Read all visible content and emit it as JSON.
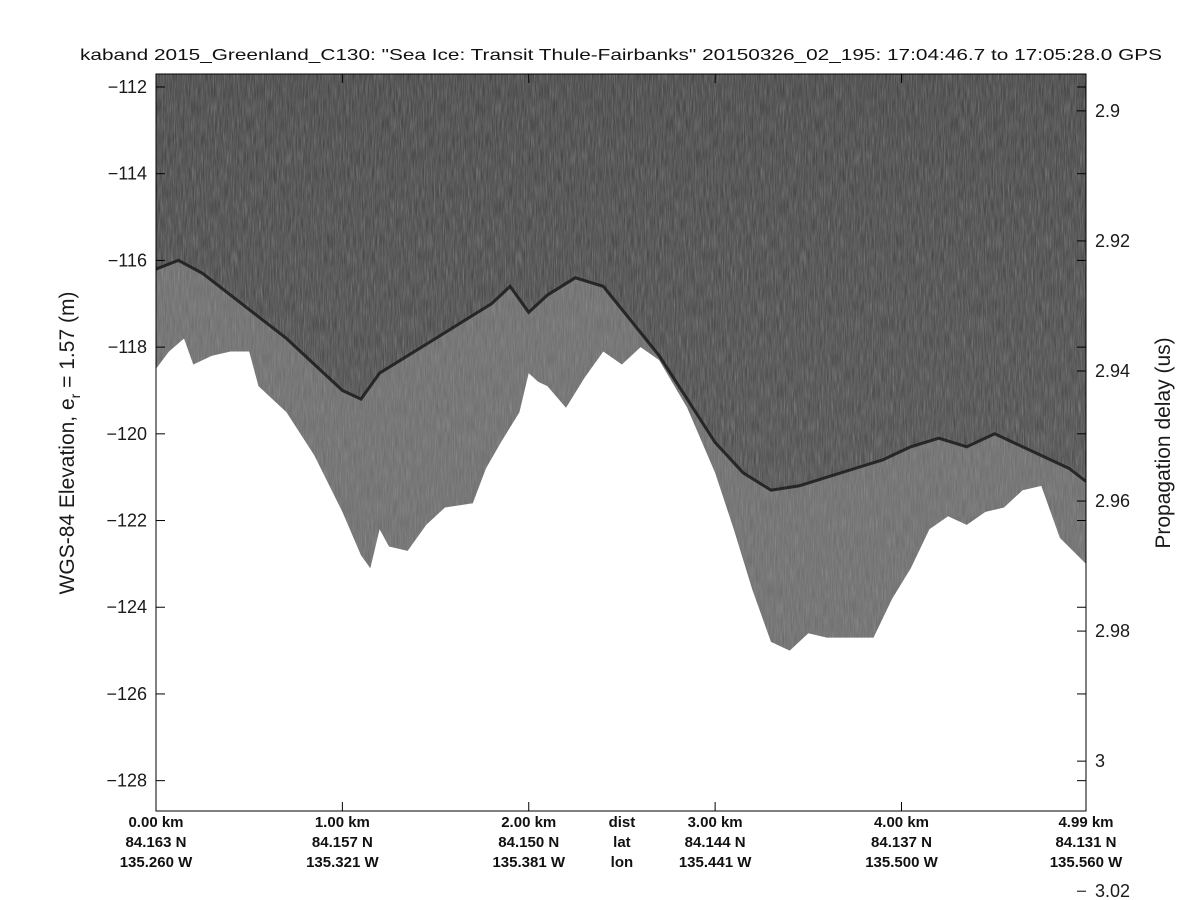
{
  "chart_data": {
    "type": "radargram",
    "title": "kaband 2015_Greenland_C130: \"Sea Ice: Transit Thule-Fairbanks\"  20150326_02_195: 17:04:46.7 to 17:05:28.0 GPS",
    "ylabel": "WGS-84 Elevation, e",
    "ylabel_sub": "r",
    "ylabel_tail": " = 1.57 (m)",
    "y2label": "Propagation delay (us)",
    "ylim": [
      -128.7,
      -111.7
    ],
    "xlim": [
      0,
      4.99
    ],
    "yticks": [
      -112,
      -114,
      -116,
      -118,
      -120,
      -122,
      -124,
      -126,
      -128
    ],
    "ytick_labels": [
      "−112",
      "−114",
      "−116",
      "−118",
      "−120",
      "−122",
      "−124",
      "−126",
      "−128"
    ],
    "y2ticks": [
      {
        "label": "2.9",
        "elev": -112.55
      },
      {
        "label": "2.92",
        "elev": -115.55
      },
      {
        "label": "2.94",
        "elev": -118.55
      },
      {
        "label": "2.96",
        "elev": -121.55
      },
      {
        "label": "2.98",
        "elev": -124.55
      },
      {
        "label": "3",
        "elev": -127.55
      },
      {
        "label": "3.02",
        "elev": -130.55
      }
    ],
    "bottom_ticks": [
      {
        "x": 0.0,
        "dist": "0.00 km",
        "lat": "84.163 N",
        "lon": "135.260 W"
      },
      {
        "x": 1.0,
        "dist": "1.00 km",
        "lat": "84.157 N",
        "lon": "135.321 W"
      },
      {
        "x": 2.0,
        "dist": "2.00 km",
        "lat": "84.150 N",
        "lon": "135.381 W"
      },
      {
        "x": 3.0,
        "dist": "3.00 km",
        "lat": "84.144 N",
        "lon": "135.441 W"
      },
      {
        "x": 4.0,
        "dist": "4.00 km",
        "lat": "84.137 N",
        "lon": "135.500 W"
      },
      {
        "x": 4.99,
        "dist": "4.99 km",
        "lat": "84.131 N",
        "lon": "135.560 W"
      }
    ],
    "bottom_row_labels": {
      "x": 2.5,
      "dist": "dist",
      "lat": "lat",
      "lon": "lon"
    },
    "surface": {
      "x": [
        0.0,
        0.12,
        0.25,
        0.4,
        0.55,
        0.7,
        0.85,
        1.0,
        1.1,
        1.2,
        1.35,
        1.5,
        1.65,
        1.8,
        1.9,
        2.0,
        2.1,
        2.25,
        2.4,
        2.55,
        2.7,
        2.85,
        3.0,
        3.15,
        3.3,
        3.45,
        3.6,
        3.75,
        3.9,
        4.05,
        4.2,
        4.35,
        4.5,
        4.6,
        4.75,
        4.9,
        4.99
      ],
      "y": [
        -116.2,
        -116.0,
        -116.3,
        -116.8,
        -117.3,
        -117.8,
        -118.4,
        -119.0,
        -119.2,
        -118.6,
        -118.2,
        -117.8,
        -117.4,
        -117.0,
        -116.6,
        -117.2,
        -116.8,
        -116.4,
        -116.6,
        -117.4,
        -118.2,
        -119.2,
        -120.2,
        -120.9,
        -121.3,
        -121.2,
        -121.0,
        -120.8,
        -120.6,
        -120.3,
        -120.1,
        -120.3,
        -120.0,
        -120.2,
        -120.5,
        -120.8,
        -121.1
      ]
    },
    "bottom": {
      "x": [
        0.0,
        0.07,
        0.15,
        0.2,
        0.3,
        0.4,
        0.5,
        0.55,
        0.7,
        0.85,
        1.0,
        1.1,
        1.15,
        1.2,
        1.25,
        1.35,
        1.45,
        1.55,
        1.7,
        1.77,
        1.85,
        1.95,
        2.0,
        2.05,
        2.1,
        2.2,
        2.3,
        2.4,
        2.5,
        2.6,
        2.7,
        2.85,
        3.0,
        3.1,
        3.2,
        3.3,
        3.4,
        3.5,
        3.6,
        3.7,
        3.85,
        3.95,
        4.05,
        4.15,
        4.25,
        4.35,
        4.45,
        4.55,
        4.65,
        4.75,
        4.85,
        4.99
      ],
      "y": [
        -118.5,
        -118.1,
        -117.8,
        -118.4,
        -118.2,
        -118.1,
        -118.1,
        -118.9,
        -119.5,
        -120.5,
        -121.8,
        -122.8,
        -123.1,
        -122.2,
        -122.6,
        -122.7,
        -122.1,
        -121.7,
        -121.6,
        -120.8,
        -120.2,
        -119.5,
        -118.6,
        -118.8,
        -118.9,
        -119.4,
        -118.7,
        -118.1,
        -118.4,
        -118.0,
        -118.3,
        -119.4,
        -120.9,
        -122.2,
        -123.6,
        -124.8,
        -125.0,
        -124.6,
        -124.7,
        -124.7,
        -124.7,
        -123.8,
        -123.1,
        -122.2,
        -121.9,
        -122.1,
        -121.8,
        -121.7,
        -121.3,
        -121.2,
        -122.4,
        -123.0
      ]
    },
    "colors": {
      "background": "#ffffff",
      "echo_dark": "#3a3a3a",
      "echo_mid": "#6c6c6c",
      "axis": "#000000"
    }
  }
}
